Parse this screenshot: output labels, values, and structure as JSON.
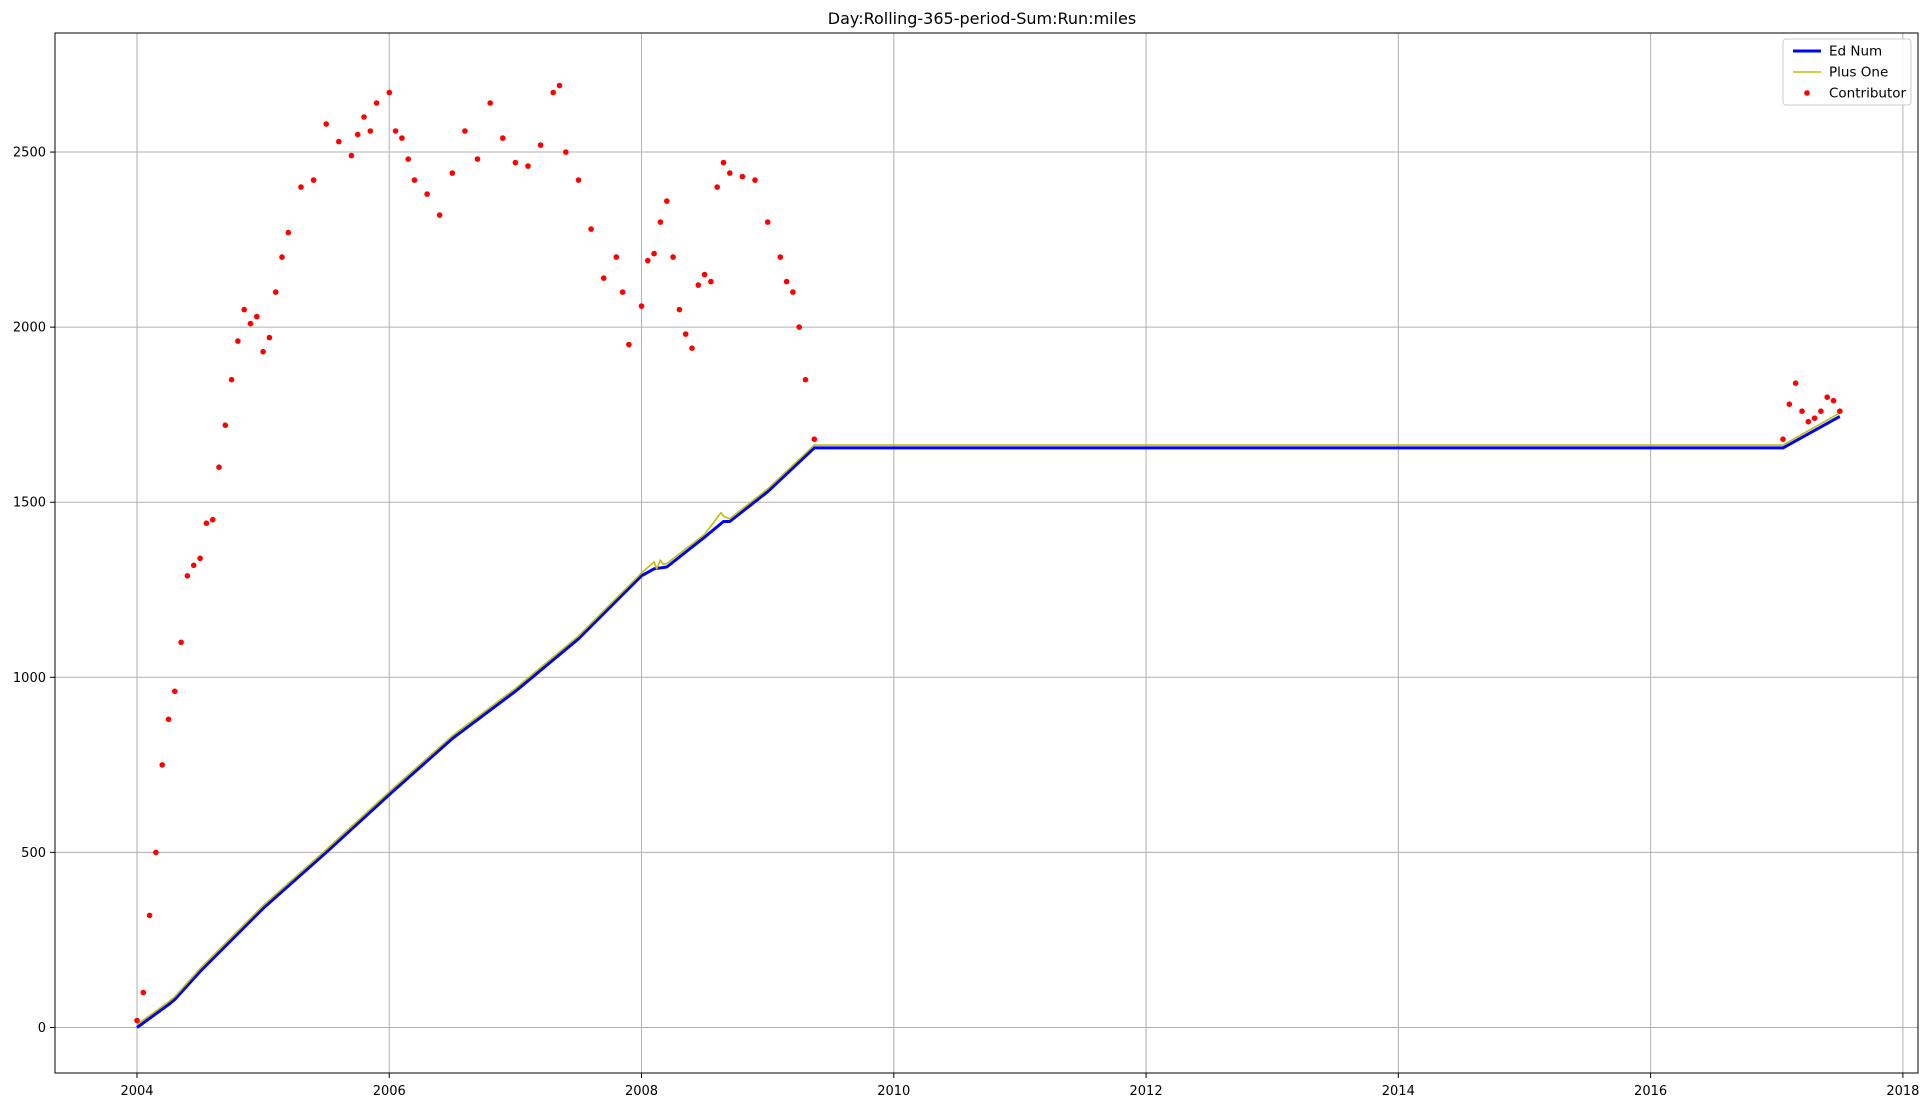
{
  "chart_data": {
    "type": "line",
    "title": "Day:Rolling-365-period-Sum:Run:miles",
    "xlabel": "",
    "ylabel": "",
    "xlim": [
      2003.35,
      2018.12
    ],
    "ylim": [
      -130,
      2840
    ],
    "x_ticks": [
      2004,
      2006,
      2008,
      2010,
      2012,
      2014,
      2016,
      2018
    ],
    "x_tick_labels": [
      "2004",
      "2006",
      "2008",
      "2010",
      "2012",
      "2014",
      "2016",
      "2018"
    ],
    "y_ticks": [
      0,
      500,
      1000,
      1500,
      2000,
      2500
    ],
    "y_tick_labels": [
      "0",
      "500",
      "1000",
      "1500",
      "2000",
      "2500"
    ],
    "grid": true,
    "legend_position": "top-right",
    "series": [
      {
        "name": "Ed Num",
        "style": "line",
        "color": "#0000ff",
        "x": [
          2004.0,
          2004.25,
          2004.3,
          2004.5,
          2005.0,
          2005.5,
          2006.0,
          2006.5,
          2007.0,
          2007.5,
          2008.0,
          2008.1,
          2008.2,
          2008.5,
          2008.65,
          2008.7,
          2009.0,
          2009.37,
          2017.05,
          2017.5
        ],
        "y": [
          0,
          65,
          80,
          160,
          340,
          500,
          665,
          825,
          960,
          1110,
          1290,
          1310,
          1315,
          1400,
          1445,
          1445,
          1530,
          1655,
          1655,
          1745
        ]
      },
      {
        "name": "Plus One",
        "style": "line",
        "color": "#bfbf00",
        "x": [
          2004.0,
          2004.25,
          2004.3,
          2004.5,
          2005.0,
          2005.5,
          2006.0,
          2006.5,
          2007.0,
          2007.5,
          2008.0,
          2008.1,
          2008.12,
          2008.15,
          2008.17,
          2008.2,
          2008.5,
          2008.63,
          2008.65,
          2008.7,
          2009.0,
          2009.37,
          2017.05,
          2017.5
        ],
        "y": [
          8,
          73,
          88,
          168,
          348,
          508,
          673,
          833,
          968,
          1118,
          1298,
          1330,
          1310,
          1335,
          1323,
          1325,
          1408,
          1470,
          1460,
          1453,
          1538,
          1663,
          1663,
          1755
        ]
      },
      {
        "name": "Contributor",
        "style": "points",
        "color": "#ff0000",
        "x": [
          2004.0,
          2004.05,
          2004.1,
          2004.15,
          2004.2,
          2004.25,
          2004.3,
          2004.35,
          2004.4,
          2004.45,
          2004.5,
          2004.55,
          2004.6,
          2004.65,
          2004.7,
          2004.75,
          2004.8,
          2004.85,
          2004.9,
          2004.95,
          2005.0,
          2005.05,
          2005.1,
          2005.15,
          2005.2,
          2005.3,
          2005.4,
          2005.5,
          2005.6,
          2005.7,
          2005.75,
          2005.8,
          2005.85,
          2005.9,
          2006.0,
          2006.05,
          2006.1,
          2006.15,
          2006.2,
          2006.3,
          2006.4,
          2006.5,
          2006.6,
          2006.7,
          2006.8,
          2006.9,
          2007.0,
          2007.1,
          2007.2,
          2007.3,
          2007.35,
          2007.4,
          2007.5,
          2007.6,
          2007.7,
          2007.8,
          2007.85,
          2007.9,
          2008.0,
          2008.05,
          2008.1,
          2008.15,
          2008.2,
          2008.25,
          2008.3,
          2008.35,
          2008.4,
          2008.45,
          2008.5,
          2008.55,
          2008.6,
          2008.65,
          2008.7,
          2008.8,
          2008.9,
          2009.0,
          2009.1,
          2009.15,
          2009.2,
          2009.25,
          2009.3,
          2009.37,
          2017.05,
          2017.1,
          2017.15,
          2017.2,
          2017.25,
          2017.3,
          2017.35,
          2017.4,
          2017.45,
          2017.5
        ],
        "y": [
          20,
          100,
          320,
          500,
          750,
          880,
          960,
          1100,
          1290,
          1320,
          1340,
          1440,
          1450,
          1600,
          1720,
          1850,
          1960,
          2050,
          2010,
          2030,
          1930,
          1970,
          2100,
          2200,
          2270,
          2400,
          2420,
          2580,
          2530,
          2490,
          2550,
          2600,
          2560,
          2640,
          2670,
          2560,
          2540,
          2480,
          2420,
          2380,
          2320,
          2440,
          2560,
          2480,
          2640,
          2540,
          2470,
          2460,
          2520,
          2670,
          2690,
          2500,
          2420,
          2280,
          2140,
          2200,
          2100,
          1950,
          2060,
          2190,
          2210,
          2300,
          2360,
          2200,
          2050,
          1980,
          1940,
          2120,
          2150,
          2130,
          2400,
          2470,
          2440,
          2430,
          2420,
          2300,
          2200,
          2130,
          2100,
          2000,
          1850,
          1680,
          1680,
          1780,
          1840,
          1760,
          1730,
          1740,
          1760,
          1800,
          1790,
          1760
        ]
      }
    ]
  }
}
